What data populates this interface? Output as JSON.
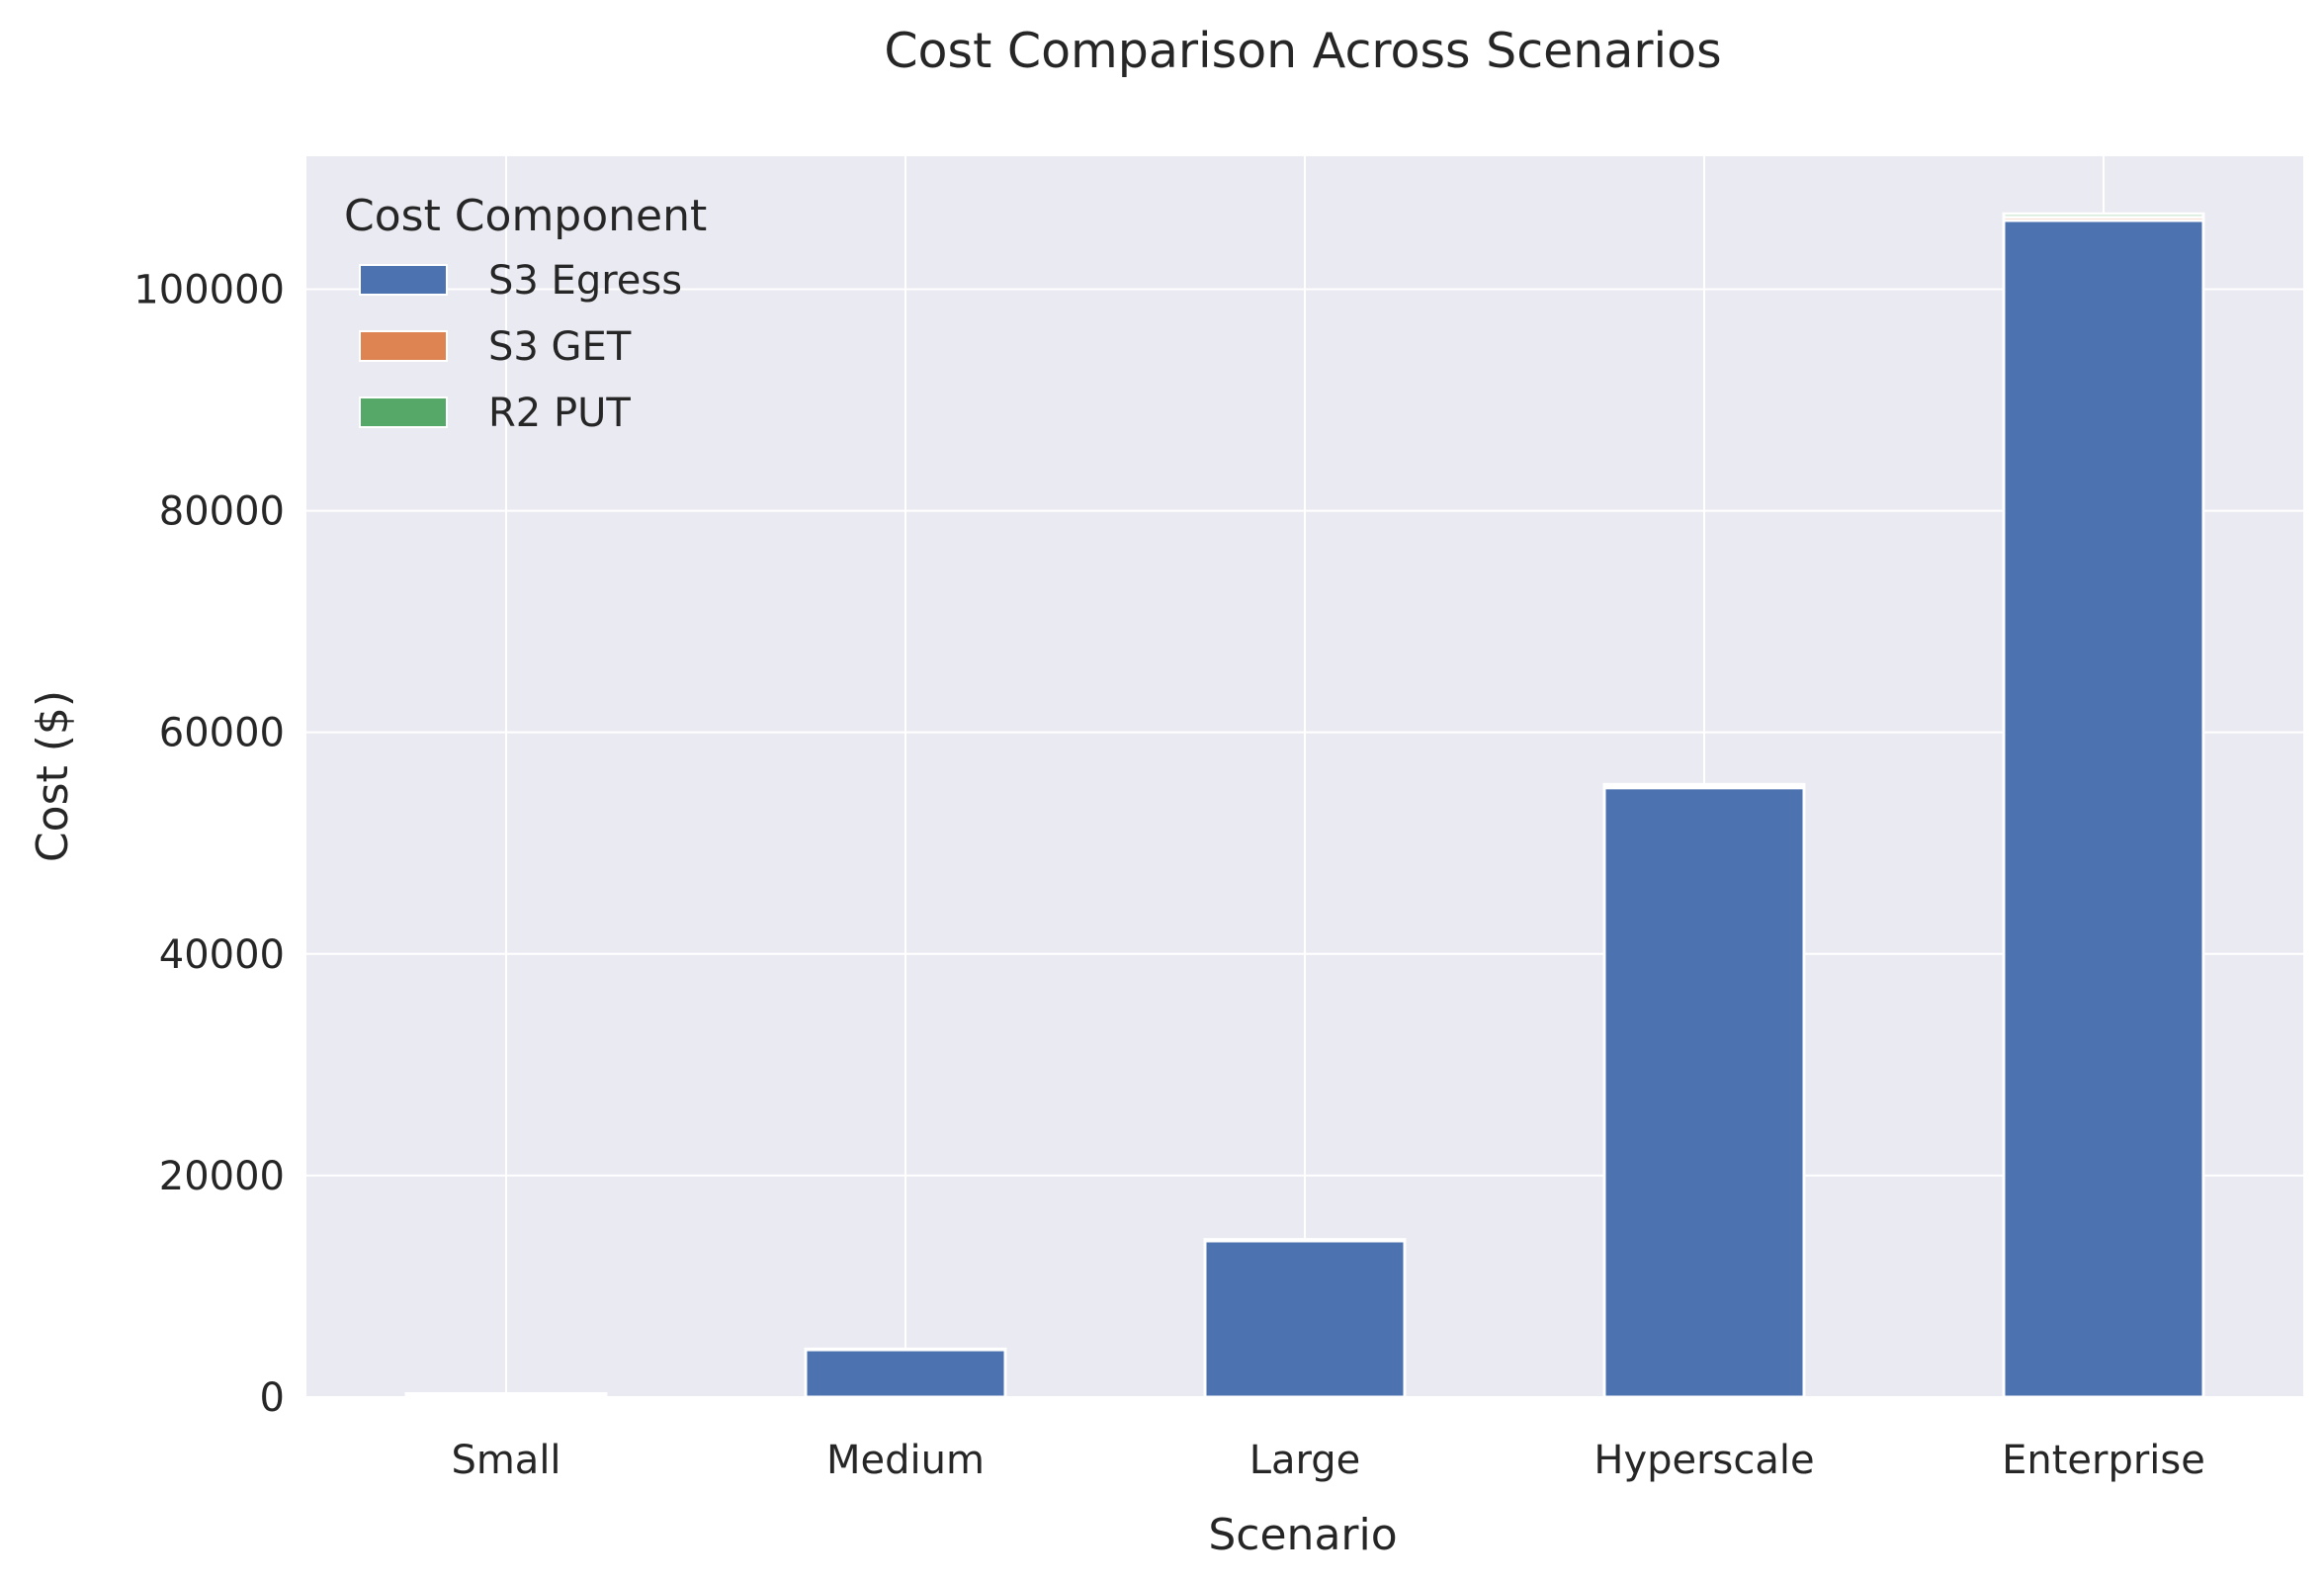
{
  "chart_data": {
    "type": "bar",
    "stacked": true,
    "title": "Cost Comparison Across Scenarios",
    "xlabel": "Scenario",
    "ylabel": "Cost ($)",
    "categories": [
      "Small",
      "Medium",
      "Large",
      "Hyperscale",
      "Enterprise"
    ],
    "ylim": [
      0,
      112000
    ],
    "yticks": [
      0,
      20000,
      40000,
      60000,
      80000,
      100000
    ],
    "grid": true,
    "legend": {
      "title": "Cost Component",
      "placement": "top-left"
    },
    "series": [
      {
        "name": "S3 Egress",
        "color": "#4c72b0",
        "values": [
          300,
          4300,
          14100,
          55000,
          106200
        ]
      },
      {
        "name": "S3 GET",
        "color": "#dd8452",
        "values": [
          5,
          20,
          60,
          150,
          300
        ]
      },
      {
        "name": "R2 PUT",
        "color": "#55a868",
        "values": [
          5,
          20,
          60,
          150,
          300
        ]
      }
    ]
  }
}
